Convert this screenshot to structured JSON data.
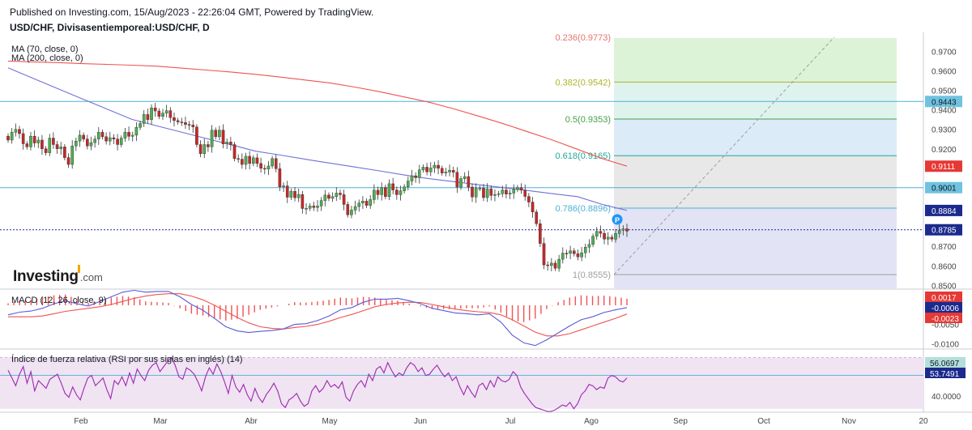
{
  "header": {
    "published": "Published on Investing.com, 15/Aug/2023 - 22:26:04 GMT, Powered by TradingView.",
    "symbol": "USD/CHF, Divisasentiemporeal:USD/CHF, D"
  },
  "legend": {
    "ma70": "MA (70, close, 0)",
    "ma200": "MA (200, close, 0)",
    "macd": "MACD (12, 26, close, 9)",
    "rsi": "Índice de fuerza relativa (RSI por sus siglas en inglés) (14)"
  },
  "logo": {
    "main": "Investing",
    "suffix": ".com"
  },
  "colors": {
    "candle_up": "#4caf50",
    "candle_down": "#c62828",
    "ma70": "#7070d8",
    "ma200": "#ef5350",
    "hline": "#4bb0d6",
    "macd_line": "#5b5bd6",
    "signal_line": "#ef5350",
    "hist": "#ef5350",
    "rsi_line": "#9c27b0",
    "rsi_band": "#f0e3f2",
    "p_badge": "#2196f3"
  },
  "chart_data": [
    {
      "type": "candlestick",
      "series_name": "USD/CHF",
      "x_ticks": [
        "Feb",
        "Mar",
        "Abr",
        "May",
        "Jun",
        "Jul",
        "Ago",
        "Sep",
        "Oct",
        "Nov",
        "20"
      ],
      "y_ticks": [
        0.85,
        0.86,
        0.87,
        0.88,
        0.89,
        0.9,
        0.91,
        0.92,
        0.93,
        0.94,
        0.95,
        0.96,
        0.97
      ],
      "y_tick_labels": [
        "0.8500",
        "0.8600",
        "0.8700",
        "0.8800",
        "0.8900",
        "0.9000",
        "0.9100",
        "0.9200",
        "0.9300",
        "0.9400",
        "0.9500",
        "0.9600",
        "0.9700"
      ],
      "ylim": [
        0.8485,
        0.9768
      ],
      "close": [
        0.9245,
        0.9285,
        0.93,
        0.9278,
        0.9226,
        0.921,
        0.9265,
        0.923,
        0.9245,
        0.92,
        0.918,
        0.9255,
        0.9222,
        0.92,
        0.921,
        0.9155,
        0.912,
        0.9215,
        0.924,
        0.927,
        0.925,
        0.9215,
        0.9232,
        0.925,
        0.9285,
        0.9262,
        0.924,
        0.9257,
        0.925,
        0.9222,
        0.9255,
        0.9285,
        0.9264,
        0.927,
        0.931,
        0.933,
        0.9376,
        0.935,
        0.941,
        0.9394,
        0.9366,
        0.9383,
        0.9396,
        0.936,
        0.9345,
        0.9338,
        0.9335,
        0.9325,
        0.9322,
        0.9312,
        0.9222,
        0.9175,
        0.9222,
        0.921,
        0.9296,
        0.9262,
        0.9296,
        0.9225,
        0.9235,
        0.9222,
        0.915,
        0.9147,
        0.912,
        0.9162,
        0.9125,
        0.9154,
        0.9125,
        0.91,
        0.9096,
        0.9112,
        0.915,
        0.9098,
        0.9005,
        0.901,
        0.8952,
        0.8982,
        0.8949,
        0.8966,
        0.8894,
        0.8895,
        0.8907,
        0.8899,
        0.8907,
        0.8935,
        0.8963,
        0.8946,
        0.8955,
        0.8973,
        0.8965,
        0.8915,
        0.8862,
        0.8886,
        0.8904,
        0.8922,
        0.8932,
        0.891,
        0.894,
        0.8988,
        0.8965,
        0.9002,
        0.8955,
        0.9021,
        0.8989,
        0.8965,
        0.8985,
        0.9005,
        0.9035,
        0.9062,
        0.9052,
        0.9092,
        0.9106,
        0.9082,
        0.9102,
        0.9116,
        0.91,
        0.9076,
        0.9081,
        0.909,
        0.908,
        0.9004,
        0.9047,
        0.9058,
        0.9004,
        0.8953,
        0.8997,
        0.8998,
        0.895,
        0.8994,
        0.8961,
        0.8966,
        0.897,
        0.8989,
        0.8968,
        0.8973,
        0.8992,
        0.9001,
        0.8988,
        0.8956,
        0.8927,
        0.8876,
        0.8816,
        0.8715,
        0.8605,
        0.8602,
        0.8614,
        0.8588,
        0.8634,
        0.8665,
        0.8664,
        0.8677,
        0.8662,
        0.8646,
        0.8667,
        0.8696,
        0.871,
        0.8752,
        0.8777,
        0.8767,
        0.8737,
        0.8747,
        0.8737,
        0.8766,
        0.8782,
        0.879,
        0.8778
      ]
    },
    {
      "type": "line",
      "series_name": "MA 70",
      "x_start_index": 0,
      "values": [
        0.9615,
        0.9562,
        0.9509,
        0.9456,
        0.9404,
        0.9351,
        0.9318,
        0.9286,
        0.9253,
        0.9221,
        0.9188,
        0.9168,
        0.9147,
        0.9127,
        0.9107,
        0.9087,
        0.9066,
        0.9047,
        0.9032,
        0.9016,
        0.9001,
        0.8986,
        0.897,
        0.8955,
        0.8915,
        0.8884
      ]
    },
    {
      "type": "line",
      "series_name": "MA 200",
      "x_start_index": 0,
      "values": [
        0.965,
        0.9646,
        0.9642,
        0.9637,
        0.9633,
        0.9629,
        0.9624,
        0.9614,
        0.9604,
        0.9594,
        0.9582,
        0.9568,
        0.9553,
        0.9538,
        0.9517,
        0.9493,
        0.9466,
        0.9439,
        0.9405,
        0.9368,
        0.9329,
        0.9287,
        0.9245,
        0.9198,
        0.915,
        0.9111
      ]
    },
    {
      "type": "fibonacci",
      "levels": [
        {
          "ratio": "0.236",
          "value": 0.9773,
          "label": "0.236(0.9773)",
          "color": "#e57373"
        },
        {
          "ratio": "0.382",
          "value": 0.9542,
          "label": "0.382(0.9542)",
          "color": "#afb42b"
        },
        {
          "ratio": "0.5",
          "value": 0.9353,
          "label": "0.5(0.9353)",
          "color": "#43a047"
        },
        {
          "ratio": "0.618",
          "value": 0.9165,
          "label": "0.618(0.9165)",
          "color": "#26a69a"
        },
        {
          "ratio": "0.786",
          "value": 0.8896,
          "label": "0.786(0.8896)",
          "color": "#4bb0d6"
        },
        {
          "ratio": "1",
          "value": 0.8555,
          "label": "1(0.8555)",
          "color": "#9e9e9e"
        }
      ],
      "zone_colors": [
        "#f1f8d8",
        "#dcf3d8",
        "#dff3ee",
        "#dcebf8",
        "#e8e8e8",
        "#e3e3f6"
      ]
    },
    {
      "type": "price_labels",
      "labels": [
        {
          "value": 0.9443,
          "text": "0.9443",
          "bg": "#6fc3e0",
          "fg": "#131722"
        },
        {
          "value": 0.9111,
          "text": "0.9111",
          "bg": "#e53935",
          "fg": "#ffffff"
        },
        {
          "value": 0.9001,
          "text": "0.9001",
          "bg": "#6fc3e0",
          "fg": "#131722"
        },
        {
          "value": 0.8884,
          "text": "0.8884",
          "bg": "#1b2a8c",
          "fg": "#ffffff"
        },
        {
          "value": 0.8785,
          "text": "0.8785",
          "bg": "#1b2a8c",
          "fg": "#ffffff"
        }
      ],
      "horizontal_lines": [
        0.9443,
        0.9001
      ],
      "dotted_line": 0.8785
    },
    {
      "type": "macd",
      "title": "MACD (12, 26, close, 9)",
      "y_ticks": [
        -0.005,
        -0.01
      ],
      "y_tick_labels": [
        "-0.0050",
        "-0.0100"
      ],
      "ylim": [
        -0.0112,
        0.004
      ],
      "macd": [
        -0.0025,
        -0.0018,
        -0.0015,
        -0.0008,
        0.0004,
        0.0012,
        0.0004,
        -0.0002,
        0.001,
        0.0022,
        0.0034,
        0.0039,
        0.0034,
        0.0036,
        0.0036,
        0.0022,
        0.0002,
        -0.0013,
        -0.0034,
        -0.0056,
        -0.0067,
        -0.0071,
        -0.0068,
        -0.0066,
        -0.0062,
        -0.005,
        -0.0048,
        -0.004,
        -0.0028,
        -0.0012,
        -0.0006,
        0.0008,
        0.0016,
        0.0016,
        0.0018,
        0.0012,
        0.0004,
        -0.0008,
        -0.0014,
        -0.002,
        -0.0022,
        -0.0025,
        -0.0022,
        -0.0044,
        -0.0078,
        -0.0098,
        -0.0105,
        -0.009,
        -0.0072,
        -0.0054,
        -0.0038,
        -0.003,
        -0.0019,
        -0.0012,
        -0.0006
      ],
      "signal": [
        -0.003,
        -0.003,
        -0.003,
        -0.0028,
        -0.0022,
        -0.0016,
        -0.0012,
        -0.0008,
        -0.0004,
        0.0002,
        0.001,
        0.0018,
        0.0024,
        0.0028,
        0.003,
        0.003,
        0.0024,
        0.0014,
        0.0,
        -0.0016,
        -0.0032,
        -0.0046,
        -0.0056,
        -0.006,
        -0.0062,
        -0.0058,
        -0.0055,
        -0.005,
        -0.0042,
        -0.0032,
        -0.0024,
        -0.0014,
        -0.0004,
        0.0002,
        0.0006,
        0.0008,
        0.0007,
        0.0002,
        -0.0004,
        -0.001,
        -0.0014,
        -0.0017,
        -0.0019,
        -0.0025,
        -0.0038,
        -0.0054,
        -0.007,
        -0.008,
        -0.008,
        -0.0074,
        -0.0064,
        -0.0054,
        -0.0044,
        -0.0034,
        -0.0023
      ],
      "last_labels": [
        {
          "text": "0.0017",
          "bg": "#e53935",
          "fg": "#ffffff"
        },
        {
          "text": "-0.0006",
          "bg": "#1b2a8c",
          "fg": "#ffffff"
        },
        {
          "text": "-0.0023",
          "bg": "#e53935",
          "fg": "#ffffff"
        }
      ]
    },
    {
      "type": "rsi",
      "title": "Índice de fuerza relativa (RSI por sus siglas en inglés) (14)",
      "y_ticks": [
        40
      ],
      "y_tick_labels": [
        "40.0000"
      ],
      "ylim": [
        28,
        76
      ],
      "band": [
        30,
        70
      ],
      "values": [
        60,
        54,
        48,
        57,
        63,
        50,
        59,
        44,
        52,
        49,
        46,
        53,
        55,
        57,
        50,
        42,
        39,
        47,
        41,
        37,
        46,
        54,
        56,
        48,
        51,
        54,
        45,
        38,
        52,
        49,
        55,
        48,
        58,
        50,
        61,
        56,
        52,
        60,
        64,
        66,
        59,
        63,
        67,
        70,
        64,
        55,
        53,
        62,
        60,
        57,
        51,
        44,
        55,
        62,
        57,
        65,
        59,
        51,
        42,
        56,
        47,
        43,
        49,
        41,
        36,
        46,
        39,
        35,
        41,
        45,
        50,
        44,
        34,
        31,
        37,
        39,
        42,
        36,
        32,
        34,
        44,
        48,
        43,
        46,
        52,
        47,
        49,
        46,
        51,
        39,
        36,
        44,
        49,
        52,
        47,
        57,
        52,
        61,
        63,
        58,
        66,
        60,
        55,
        58,
        56,
        62,
        66,
        64,
        59,
        62,
        56,
        57,
        61,
        64,
        59,
        55,
        58,
        52,
        55,
        47,
        41,
        48,
        43,
        39,
        48,
        50,
        45,
        52,
        47,
        55,
        52,
        51,
        53,
        59,
        56,
        47,
        42,
        38,
        34,
        31,
        30,
        29,
        28,
        28,
        29,
        31,
        33,
        32,
        35,
        30,
        34,
        41,
        44,
        49,
        48,
        45,
        47,
        46,
        54,
        56,
        55,
        52,
        51,
        54
      ],
      "last_labels": [
        {
          "text": "56.0697",
          "bg": "#b2dfdb",
          "fg": "#131722"
        },
        {
          "text": "53.7491",
          "bg": "#1b2a8c",
          "fg": "#ffffff"
        }
      ]
    }
  ]
}
